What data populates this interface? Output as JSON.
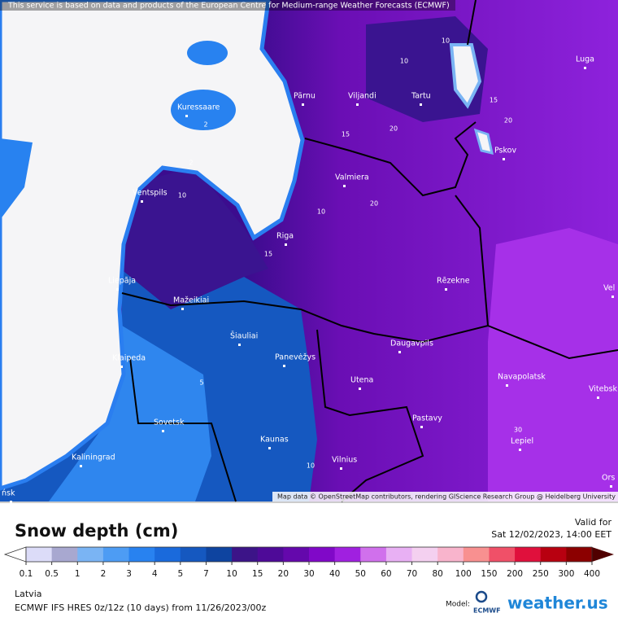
{
  "header": {
    "attribution": "This service is based on data and products of the European Centre for Medium-range Weather Forecasts (ECMWF)"
  },
  "map": {
    "cities": [
      "Pärnu",
      "Viljandi",
      "Tartu",
      "Luga",
      "Kuressaare",
      "Pskov",
      "Valmiera",
      "Ventspils",
      "Riga",
      "Liepāja",
      "Rēzekne",
      "Mažeikiai",
      "Šiauliai",
      "Klaipeda",
      "Panevėžys",
      "Daugavpils",
      "Utena",
      "Navapolatsk",
      "Vitebsk",
      "Sovetsk",
      "Pastavy",
      "Lepiel",
      "Kaunas",
      "Vilnius",
      "Kaliningrad",
      "Vel",
      "Ors",
      "ńsk"
    ],
    "contours": [
      "10",
      "10",
      "15",
      "20",
      "20",
      "15",
      "20",
      "10",
      "2",
      "2",
      "10",
      "15",
      "10",
      "30",
      "5"
    ],
    "credit": "Map data © OpenStreetMap contributors, rendering GIScience Research Group @ Heidelberg University"
  },
  "legend": {
    "title": "Snow depth (cm)",
    "valid_label": "Valid for",
    "valid_time": "Sat 12/02/2023, 14:00 EET",
    "ticks": [
      0.1,
      0.5,
      1,
      2,
      3,
      4,
      5,
      7,
      10,
      15,
      20,
      30,
      40,
      50,
      60,
      70,
      80,
      100,
      150,
      200,
      250,
      300,
      400
    ],
    "colors": [
      "#dcdcf8",
      "#a8a8d0",
      "#7ab4f4",
      "#4d9cf4",
      "#2882f0",
      "#1a6adc",
      "#1558c0",
      "#0e44a0",
      "#3c1488",
      "#4e0a98",
      "#6408ac",
      "#8008c8",
      "#a020e0",
      "#d070ec",
      "#e8b0f4",
      "#f4d0f0",
      "#f8b4cc",
      "#f89090",
      "#f05068",
      "#e0103c",
      "#b80010",
      "#8c0000"
    ],
    "under_color": "#ffffff",
    "over_color": "#500000"
  },
  "footer": {
    "region": "Latvia",
    "model_run": "ECMWF IFS HRES 0z/12z (10 days) from 11/26/2023/00z",
    "model_label": "Model:",
    "ecmwf": "ECMWF",
    "brand": "weather.us"
  }
}
